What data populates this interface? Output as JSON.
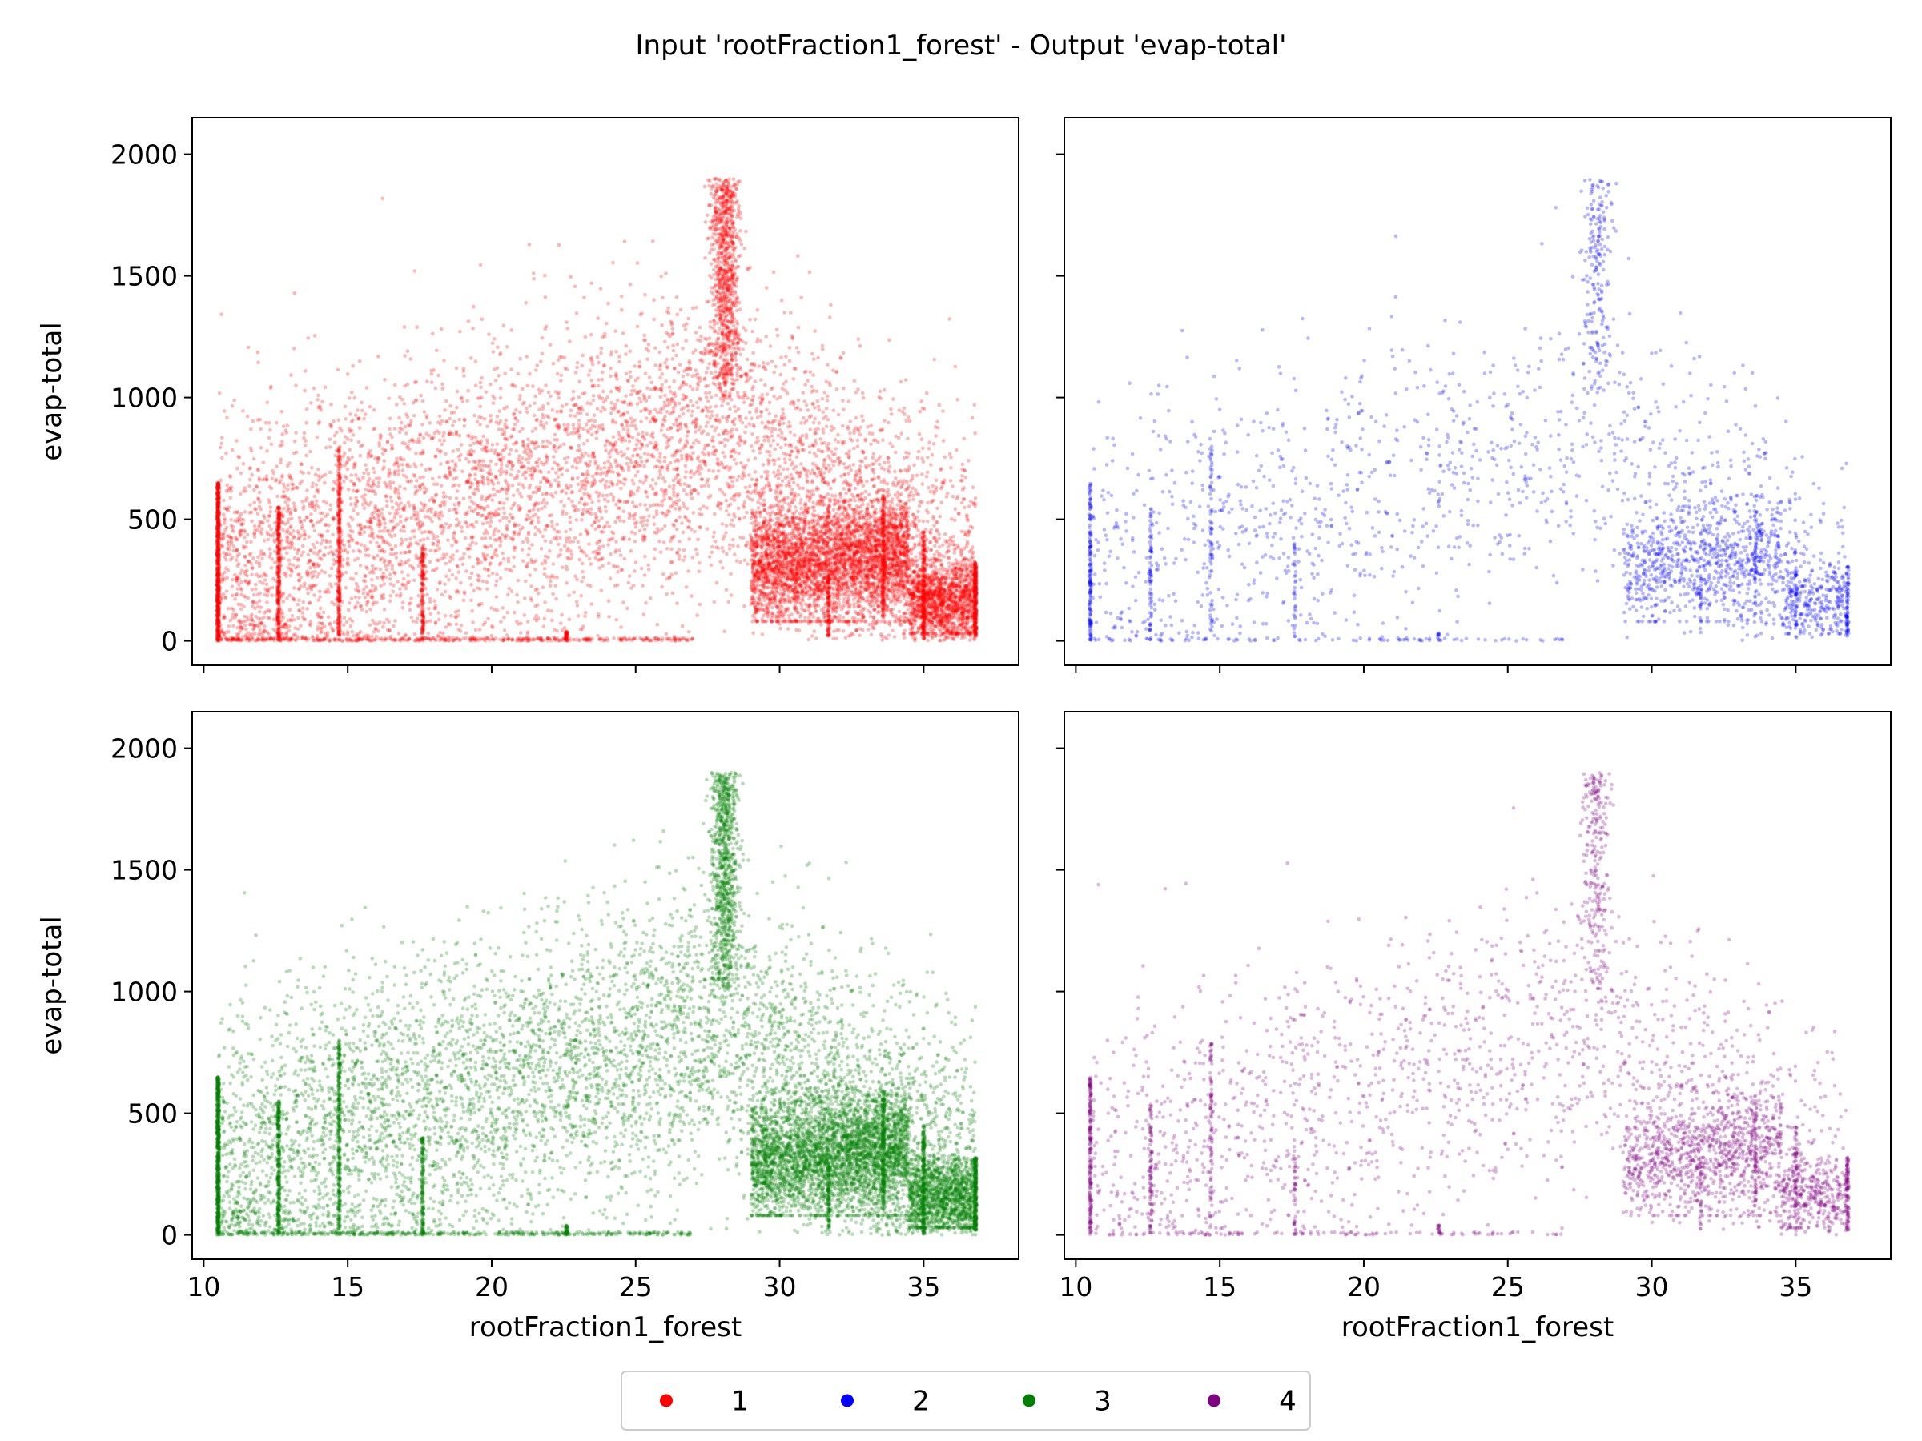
{
  "figure": {
    "title": "Input 'rootFraction1_forest' - Output 'evap-total'"
  },
  "legend": {
    "placement": "bottom-center",
    "entries": [
      {
        "label": "1",
        "color": "#ff0000"
      },
      {
        "label": "2",
        "color": "#0000ff"
      },
      {
        "label": "3",
        "color": "#008000"
      },
      {
        "label": "4",
        "color": "#800080"
      }
    ]
  },
  "chart_data": [
    {
      "type": "scatter",
      "name": "1",
      "color": "#ff0000",
      "density": 1.0,
      "xlabel": "",
      "ylabel": "evap-total",
      "xlim": [
        9.6,
        38.3
      ],
      "ylim": [
        -100,
        2150
      ],
      "xticks": [
        10,
        15,
        20,
        25,
        30,
        35
      ],
      "yticks": [
        0,
        500,
        1000,
        1500,
        2000
      ],
      "show_xticklabels": false,
      "show_yticklabels": true
    },
    {
      "type": "scatter",
      "name": "2",
      "color": "#0000ff",
      "density": 0.22,
      "xlabel": "",
      "ylabel": "",
      "xlim": [
        9.6,
        38.3
      ],
      "ylim": [
        -100,
        2150
      ],
      "xticks": [
        10,
        15,
        20,
        25,
        30,
        35
      ],
      "yticks": [
        0,
        500,
        1000,
        1500,
        2000
      ],
      "show_xticklabels": false,
      "show_yticklabels": false
    },
    {
      "type": "scatter",
      "name": "3",
      "color": "#008000",
      "density": 1.0,
      "xlabel": "rootFraction1_forest",
      "ylabel": "evap-total",
      "xlim": [
        9.6,
        38.3
      ],
      "ylim": [
        -100,
        2150
      ],
      "xticks": [
        10,
        15,
        20,
        25,
        30,
        35
      ],
      "yticks": [
        0,
        500,
        1000,
        1500,
        2000
      ],
      "show_xticklabels": true,
      "show_yticklabels": true
    },
    {
      "type": "scatter",
      "name": "4",
      "color": "#800080",
      "density": 0.28,
      "xlabel": "rootFraction1_forest",
      "ylabel": "",
      "xlim": [
        9.6,
        38.3
      ],
      "ylim": [
        -100,
        2150
      ],
      "xticks": [
        10,
        15,
        20,
        25,
        30,
        35
      ],
      "yticks": [
        0,
        500,
        1000,
        1500,
        2000
      ],
      "show_xticklabels": true,
      "show_yticklabels": false
    }
  ],
  "distribution": {
    "x_range": [
      10.5,
      36.8
    ],
    "background": {
      "count": 6000,
      "peak_x": 28,
      "peak_y": 850,
      "low_y": 300
    },
    "spike": {
      "x": 28.1,
      "count": 900,
      "y_range": [
        1000,
        1900
      ]
    },
    "right_cluster": {
      "x_range": [
        29,
        34.5
      ],
      "count": 3500,
      "y_range": [
        80,
        650
      ]
    },
    "tail_cluster": {
      "x_range": [
        34.5,
        36.8
      ],
      "count": 1200,
      "y_range": [
        30,
        450
      ]
    },
    "zero_row": {
      "count": 400,
      "x_range": [
        10.5,
        27
      ]
    },
    "vertical_lines": [
      {
        "x": 10.5,
        "y_range": [
          0,
          650
        ],
        "count": 700
      },
      {
        "x": 12.6,
        "y_range": [
          0,
          550
        ],
        "count": 300
      },
      {
        "x": 14.7,
        "y_range": [
          20,
          800
        ],
        "count": 300
      },
      {
        "x": 17.6,
        "y_range": [
          0,
          400
        ],
        "count": 150
      },
      {
        "x": 22.6,
        "y_range": [
          0,
          40
        ],
        "count": 40
      },
      {
        "x": 31.7,
        "y_range": [
          20,
          300
        ],
        "count": 100
      },
      {
        "x": 33.6,
        "y_range": [
          100,
          600
        ],
        "count": 200
      },
      {
        "x": 35.0,
        "y_range": [
          0,
          450
        ],
        "count": 200
      },
      {
        "x": 36.8,
        "y_range": [
          20,
          320
        ],
        "count": 300
      }
    ]
  }
}
